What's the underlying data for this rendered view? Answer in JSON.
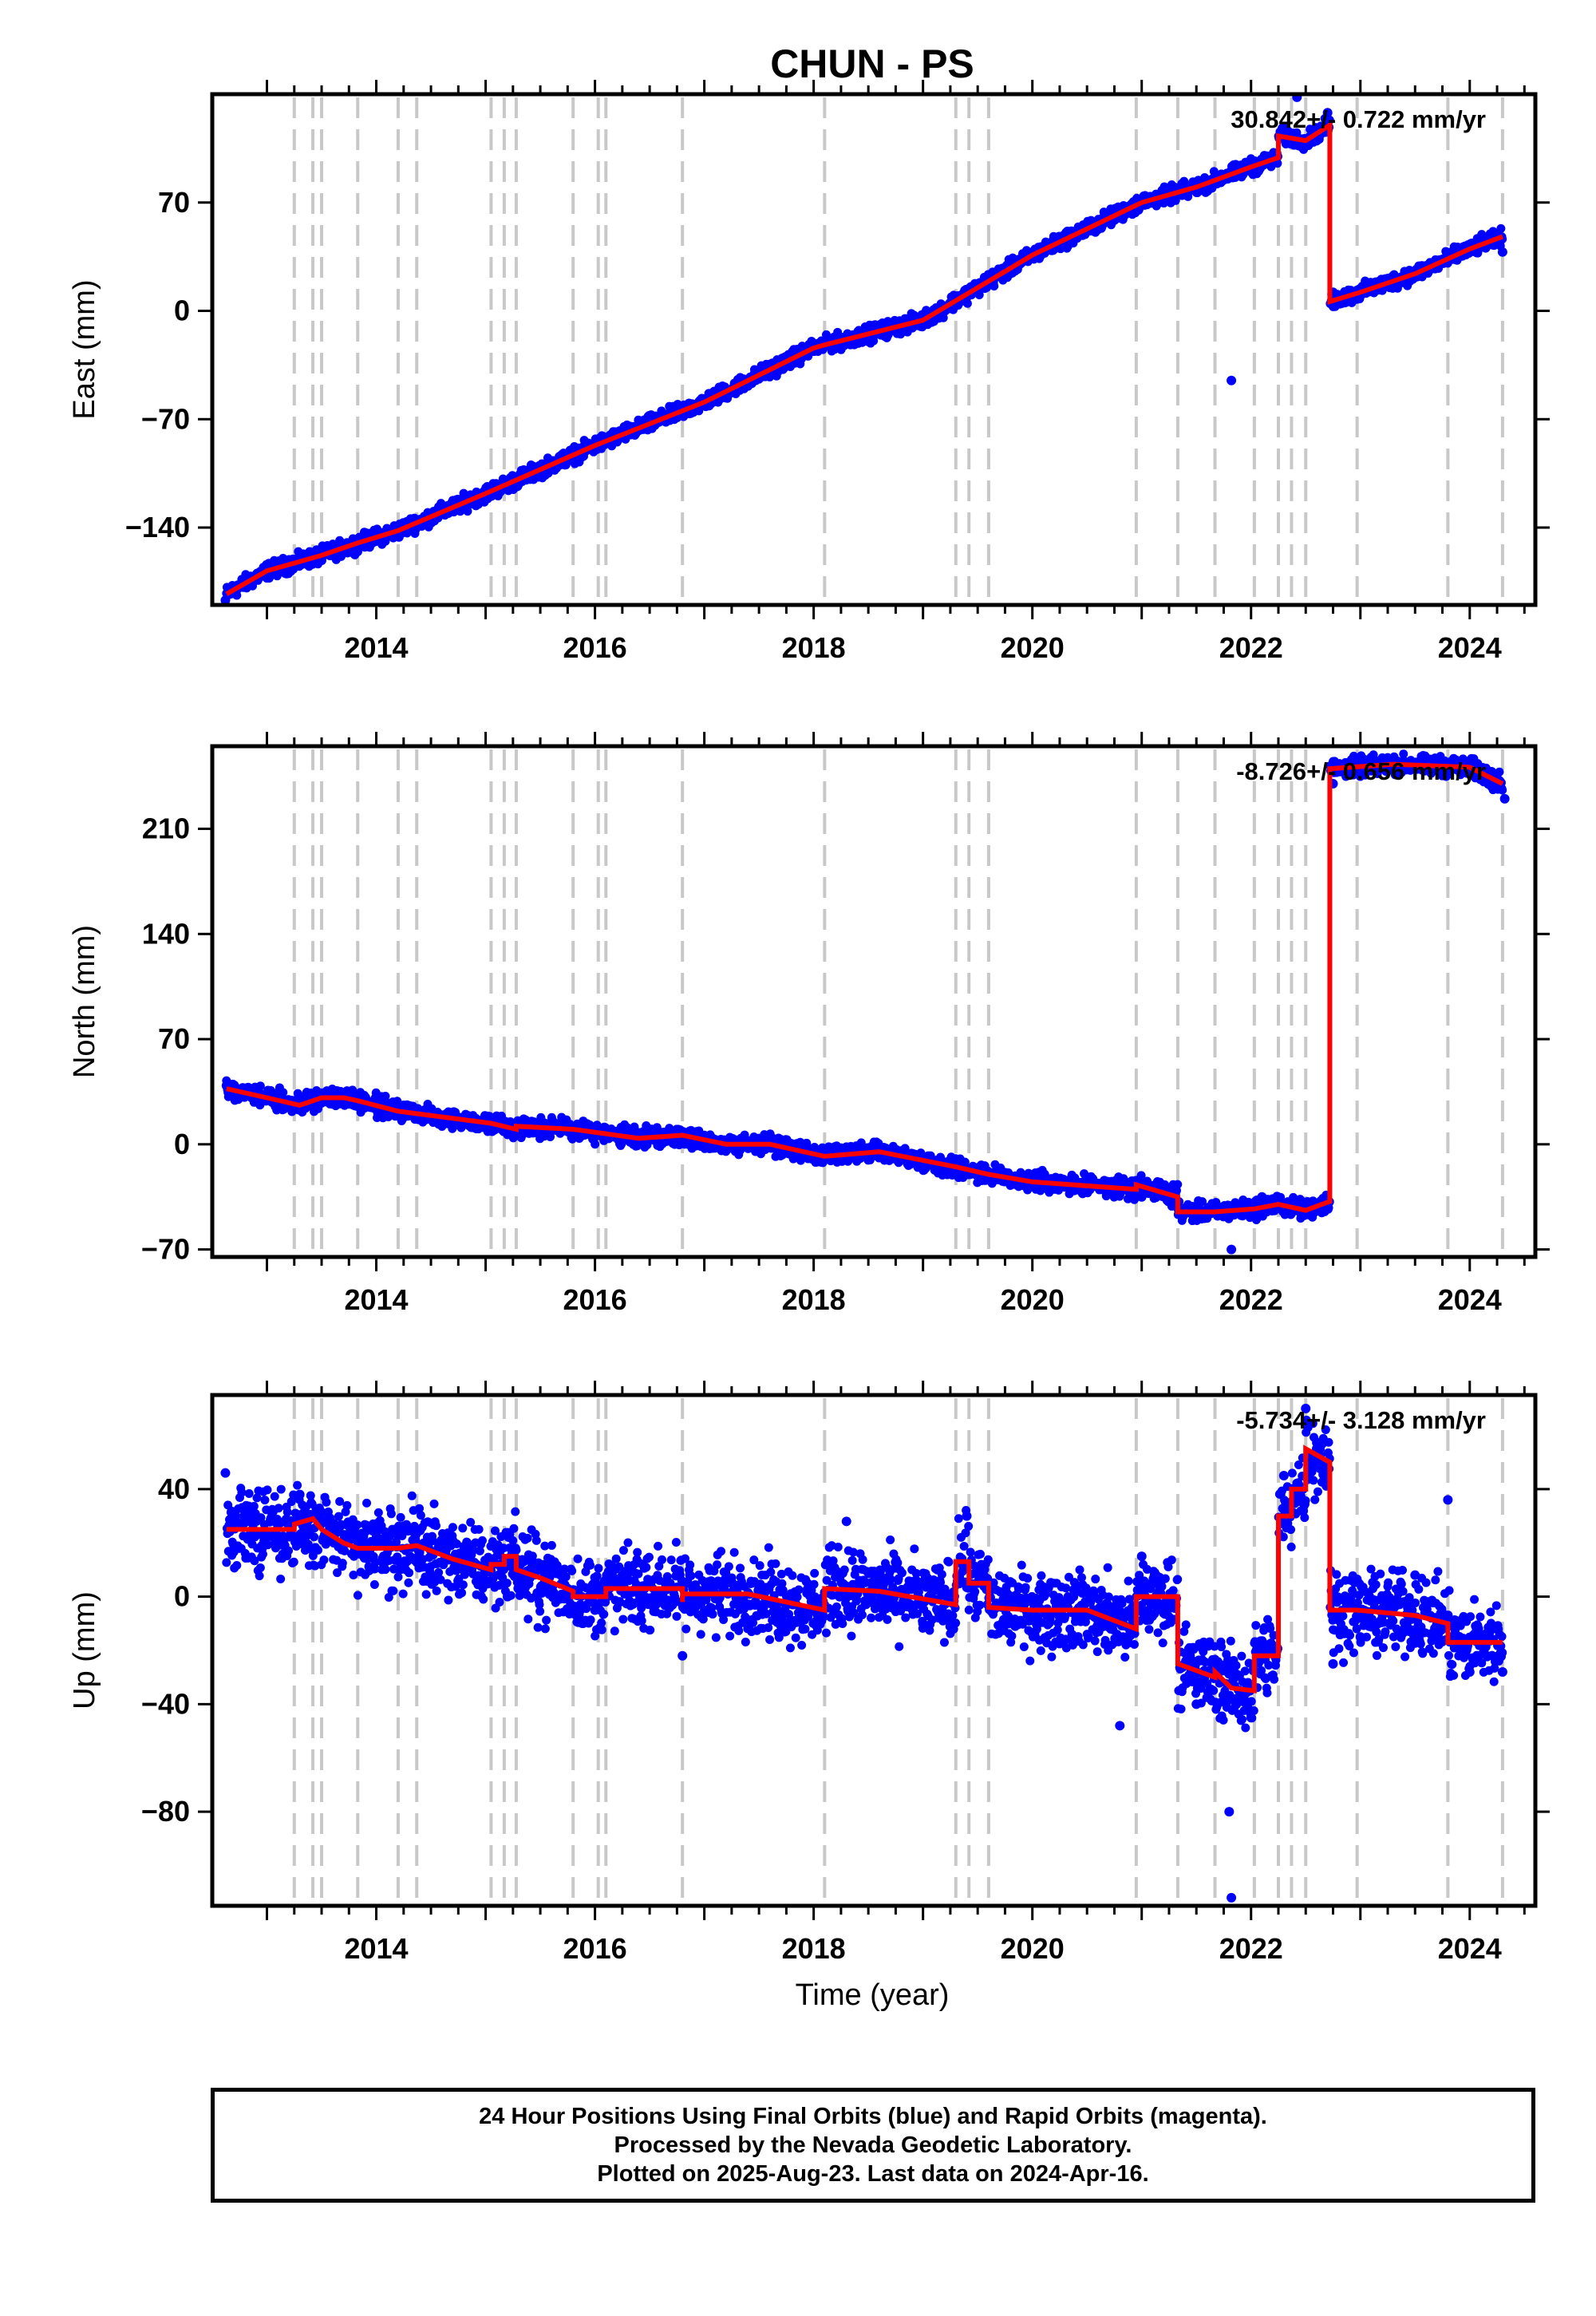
{
  "title": "CHUN - PS",
  "xlabel": "Time (year)",
  "footer": {
    "line1": "24 Hour Positions Using Final Orbits (blue) and Rapid Orbits (magenta).",
    "line2": "Processed by the Nevada Geodetic Laboratory.",
    "line3": "Plotted on 2025-Aug-23. Last data on 2024-Apr-16."
  },
  "colors": {
    "data_points": "#0000ff",
    "model_fit": "#ff0000",
    "event_lines": "#c8c8c8",
    "frame": "#000000"
  },
  "chart_data": [
    {
      "type": "scatter",
      "component": "East",
      "ylabel": "East (mm)",
      "rate_label": "30.842+/- 0.722 mm/yr",
      "xlim": [
        2012.5,
        2024.6
      ],
      "ylim": [
        -190,
        140
      ],
      "yticks": [
        -140,
        -70,
        0,
        70
      ],
      "xticks": [
        2014,
        2016,
        2018,
        2020,
        2022,
        2024
      ],
      "event_lines": [
        2013.25,
        2013.42,
        2013.5,
        2013.83,
        2014.2,
        2014.37,
        2015.05,
        2015.17,
        2015.28,
        2015.8,
        2016.03,
        2016.1,
        2016.8,
        2018.1,
        2019.3,
        2019.42,
        2019.6,
        2020.95,
        2021.33,
        2021.67,
        2022.03,
        2022.25,
        2022.37,
        2022.5,
        2022.97,
        2023.8,
        2024.3
      ],
      "model_points": [
        [
          2012.63,
          -183
        ],
        [
          2013.0,
          -168
        ],
        [
          2013.5,
          -158
        ],
        [
          2013.83,
          -150
        ],
        [
          2013.83,
          -150
        ],
        [
          2014.2,
          -142
        ],
        [
          2015.0,
          -118
        ],
        [
          2016.0,
          -87
        ],
        [
          2017.0,
          -59
        ],
        [
          2018.0,
          -24
        ],
        [
          2018.1,
          -22
        ],
        [
          2019.0,
          -6
        ],
        [
          2020.0,
          36
        ],
        [
          2021.0,
          70
        ],
        [
          2021.5,
          80
        ],
        [
          2022.0,
          93
        ],
        [
          2022.25,
          99
        ],
        [
          2022.25,
          113
        ],
        [
          2022.5,
          110
        ],
        [
          2022.72,
          120
        ],
        [
          2022.72,
          6
        ],
        [
          2023.0,
          12
        ],
        [
          2023.5,
          24
        ],
        [
          2024.0,
          40
        ],
        [
          2024.3,
          48
        ]
      ],
      "data_points": [
        [
          2012.62,
          -187
        ],
        [
          2012.8,
          -178
        ],
        [
          2013.3,
          -160
        ],
        [
          2013.8,
          -150
        ],
        [
          2014.5,
          -134
        ],
        [
          2015.3,
          -110
        ],
        [
          2016.2,
          -82
        ],
        [
          2017.2,
          -53
        ],
        [
          2018.2,
          -20
        ],
        [
          2019.2,
          0
        ],
        [
          2020.2,
          40
        ],
        [
          2021.2,
          73
        ],
        [
          2021.82,
          -45
        ],
        [
          2022.1,
          97
        ],
        [
          2022.42,
          138
        ],
        [
          2022.7,
          128
        ],
        [
          2022.75,
          12
        ],
        [
          2023.3,
          18
        ],
        [
          2024.1,
          46
        ],
        [
          2024.3,
          38
        ]
      ]
    },
    {
      "type": "scatter",
      "component": "North",
      "ylabel": "North (mm)",
      "rate_label": "-8.726+/- 0.656 mm/yr",
      "xlim": [
        2012.5,
        2024.6
      ],
      "ylim": [
        -75,
        265
      ],
      "yticks": [
        -70,
        0,
        70,
        140,
        210
      ],
      "xticks": [
        2014,
        2016,
        2018,
        2020,
        2022,
        2024
      ],
      "event_lines": [
        2013.25,
        2013.42,
        2013.5,
        2013.83,
        2014.2,
        2014.37,
        2015.05,
        2015.17,
        2015.28,
        2015.8,
        2016.03,
        2016.1,
        2016.8,
        2018.1,
        2019.3,
        2019.42,
        2019.6,
        2020.95,
        2021.33,
        2021.67,
        2022.03,
        2022.25,
        2022.37,
        2022.5,
        2022.97,
        2023.8,
        2024.3
      ],
      "model_points": [
        [
          2012.63,
          37
        ],
        [
          2013.0,
          31
        ],
        [
          2013.3,
          26
        ],
        [
          2013.5,
          31
        ],
        [
          2013.7,
          31
        ],
        [
          2013.83,
          29
        ],
        [
          2014.2,
          22
        ],
        [
          2015.05,
          14
        ],
        [
          2015.28,
          10
        ],
        [
          2015.28,
          12
        ],
        [
          2015.8,
          10
        ],
        [
          2016.1,
          7
        ],
        [
          2016.4,
          4
        ],
        [
          2016.8,
          6
        ],
        [
          2017.2,
          0
        ],
        [
          2017.6,
          0
        ],
        [
          2018.1,
          -8
        ],
        [
          2018.6,
          -5
        ],
        [
          2019.3,
          -15
        ],
        [
          2019.6,
          -20
        ],
        [
          2020.0,
          -25
        ],
        [
          2020.95,
          -30
        ],
        [
          2020.95,
          -27
        ],
        [
          2021.33,
          -35
        ],
        [
          2021.33,
          -45
        ],
        [
          2021.67,
          -45
        ],
        [
          2022.03,
          -43
        ],
        [
          2022.25,
          -40
        ],
        [
          2022.5,
          -44
        ],
        [
          2022.72,
          -38
        ],
        [
          2022.72,
          250
        ],
        [
          2023.3,
          253
        ],
        [
          2024.0,
          251
        ],
        [
          2024.3,
          240
        ]
      ],
      "data_points": [
        [
          2012.63,
          39
        ],
        [
          2013.0,
          30
        ],
        [
          2013.5,
          33
        ],
        [
          2014.5,
          18
        ],
        [
          2015.5,
          11
        ],
        [
          2016.5,
          4
        ],
        [
          2017.5,
          -2
        ],
        [
          2018.5,
          -6
        ],
        [
          2019.5,
          -18
        ],
        [
          2020.4,
          -28
        ],
        [
          2021.0,
          -35
        ],
        [
          2021.5,
          -50
        ],
        [
          2021.82,
          -70
        ],
        [
          2022.1,
          -35
        ],
        [
          2022.6,
          -44
        ],
        [
          2022.75,
          240
        ],
        [
          2023.0,
          257
        ],
        [
          2023.6,
          255
        ],
        [
          2024.2,
          248
        ],
        [
          2024.32,
          230
        ]
      ]
    },
    {
      "type": "scatter",
      "component": "Up",
      "ylabel": "Up (mm)",
      "rate_label": "-5.734+/- 3.128 mm/yr",
      "xlim": [
        2012.5,
        2024.6
      ],
      "ylim": [
        -115,
        75
      ],
      "yticks": [
        -80,
        -40,
        0,
        40
      ],
      "xticks": [
        2014,
        2016,
        2018,
        2020,
        2022,
        2024
      ],
      "event_lines": [
        2013.25,
        2013.42,
        2013.5,
        2013.83,
        2014.2,
        2014.37,
        2015.05,
        2015.17,
        2015.28,
        2015.8,
        2016.03,
        2016.1,
        2016.8,
        2018.1,
        2019.3,
        2019.42,
        2019.6,
        2020.95,
        2021.33,
        2021.67,
        2022.03,
        2022.25,
        2022.37,
        2022.5,
        2022.97,
        2023.8,
        2024.3
      ],
      "model_points": [
        [
          2012.63,
          25
        ],
        [
          2013.25,
          25
        ],
        [
          2013.25,
          27
        ],
        [
          2013.42,
          29
        ],
        [
          2013.5,
          25
        ],
        [
          2013.7,
          20
        ],
        [
          2013.83,
          18
        ],
        [
          2014.2,
          18
        ],
        [
          2014.37,
          19
        ],
        [
          2014.7,
          14
        ],
        [
          2015.05,
          10
        ],
        [
          2015.05,
          12
        ],
        [
          2015.17,
          12
        ],
        [
          2015.17,
          15
        ],
        [
          2015.28,
          15
        ],
        [
          2015.28,
          10
        ],
        [
          2015.5,
          7
        ],
        [
          2015.8,
          2
        ],
        [
          2015.8,
          0
        ],
        [
          2016.1,
          0
        ],
        [
          2016.1,
          3
        ],
        [
          2016.8,
          3
        ],
        [
          2016.8,
          -2
        ],
        [
          2016.8,
          1
        ],
        [
          2017.4,
          1
        ],
        [
          2018.1,
          -5
        ],
        [
          2018.1,
          3
        ],
        [
          2018.6,
          2
        ],
        [
          2019.3,
          -3
        ],
        [
          2019.3,
          13
        ],
        [
          2019.42,
          13
        ],
        [
          2019.42,
          5
        ],
        [
          2019.6,
          5
        ],
        [
          2019.6,
          -4
        ],
        [
          2020.0,
          -5
        ],
        [
          2020.5,
          -5
        ],
        [
          2020.95,
          -12
        ],
        [
          2020.95,
          0
        ],
        [
          2021.33,
          0
        ],
        [
          2021.33,
          -25
        ],
        [
          2021.67,
          -30
        ],
        [
          2021.67,
          -28
        ],
        [
          2021.82,
          -34
        ],
        [
          2022.03,
          -35
        ],
        [
          2022.03,
          -22
        ],
        [
          2022.25,
          -22
        ],
        [
          2022.25,
          30
        ],
        [
          2022.37,
          30
        ],
        [
          2022.37,
          40
        ],
        [
          2022.5,
          40
        ],
        [
          2022.5,
          55
        ],
        [
          2022.72,
          50
        ],
        [
          2022.72,
          -5
        ],
        [
          2022.97,
          -5
        ],
        [
          2023.5,
          -7
        ],
        [
          2023.8,
          -10
        ],
        [
          2023.8,
          -17
        ],
        [
          2024.3,
          -17
        ]
      ],
      "data_points": [
        [
          2012.62,
          46
        ],
        [
          2012.7,
          18
        ],
        [
          2013.3,
          38
        ],
        [
          2014.0,
          24
        ],
        [
          2014.5,
          8
        ],
        [
          2015.2,
          0
        ],
        [
          2016.0,
          -5
        ],
        [
          2016.8,
          -22
        ],
        [
          2017.5,
          3
        ],
        [
          2018.3,
          28
        ],
        [
          2019.0,
          -10
        ],
        [
          2019.4,
          30
        ],
        [
          2020.4,
          -8
        ],
        [
          2020.8,
          -48
        ],
        [
          2021.0,
          15
        ],
        [
          2021.5,
          -40
        ],
        [
          2021.8,
          -80
        ],
        [
          2021.82,
          -112
        ],
        [
          2022.0,
          -45
        ],
        [
          2022.3,
          45
        ],
        [
          2022.5,
          70
        ],
        [
          2022.6,
          55
        ],
        [
          2022.75,
          -25
        ],
        [
          2023.0,
          -15
        ],
        [
          2023.5,
          8
        ],
        [
          2023.8,
          36
        ],
        [
          2024.0,
          -28
        ],
        [
          2024.3,
          -28
        ]
      ]
    }
  ]
}
